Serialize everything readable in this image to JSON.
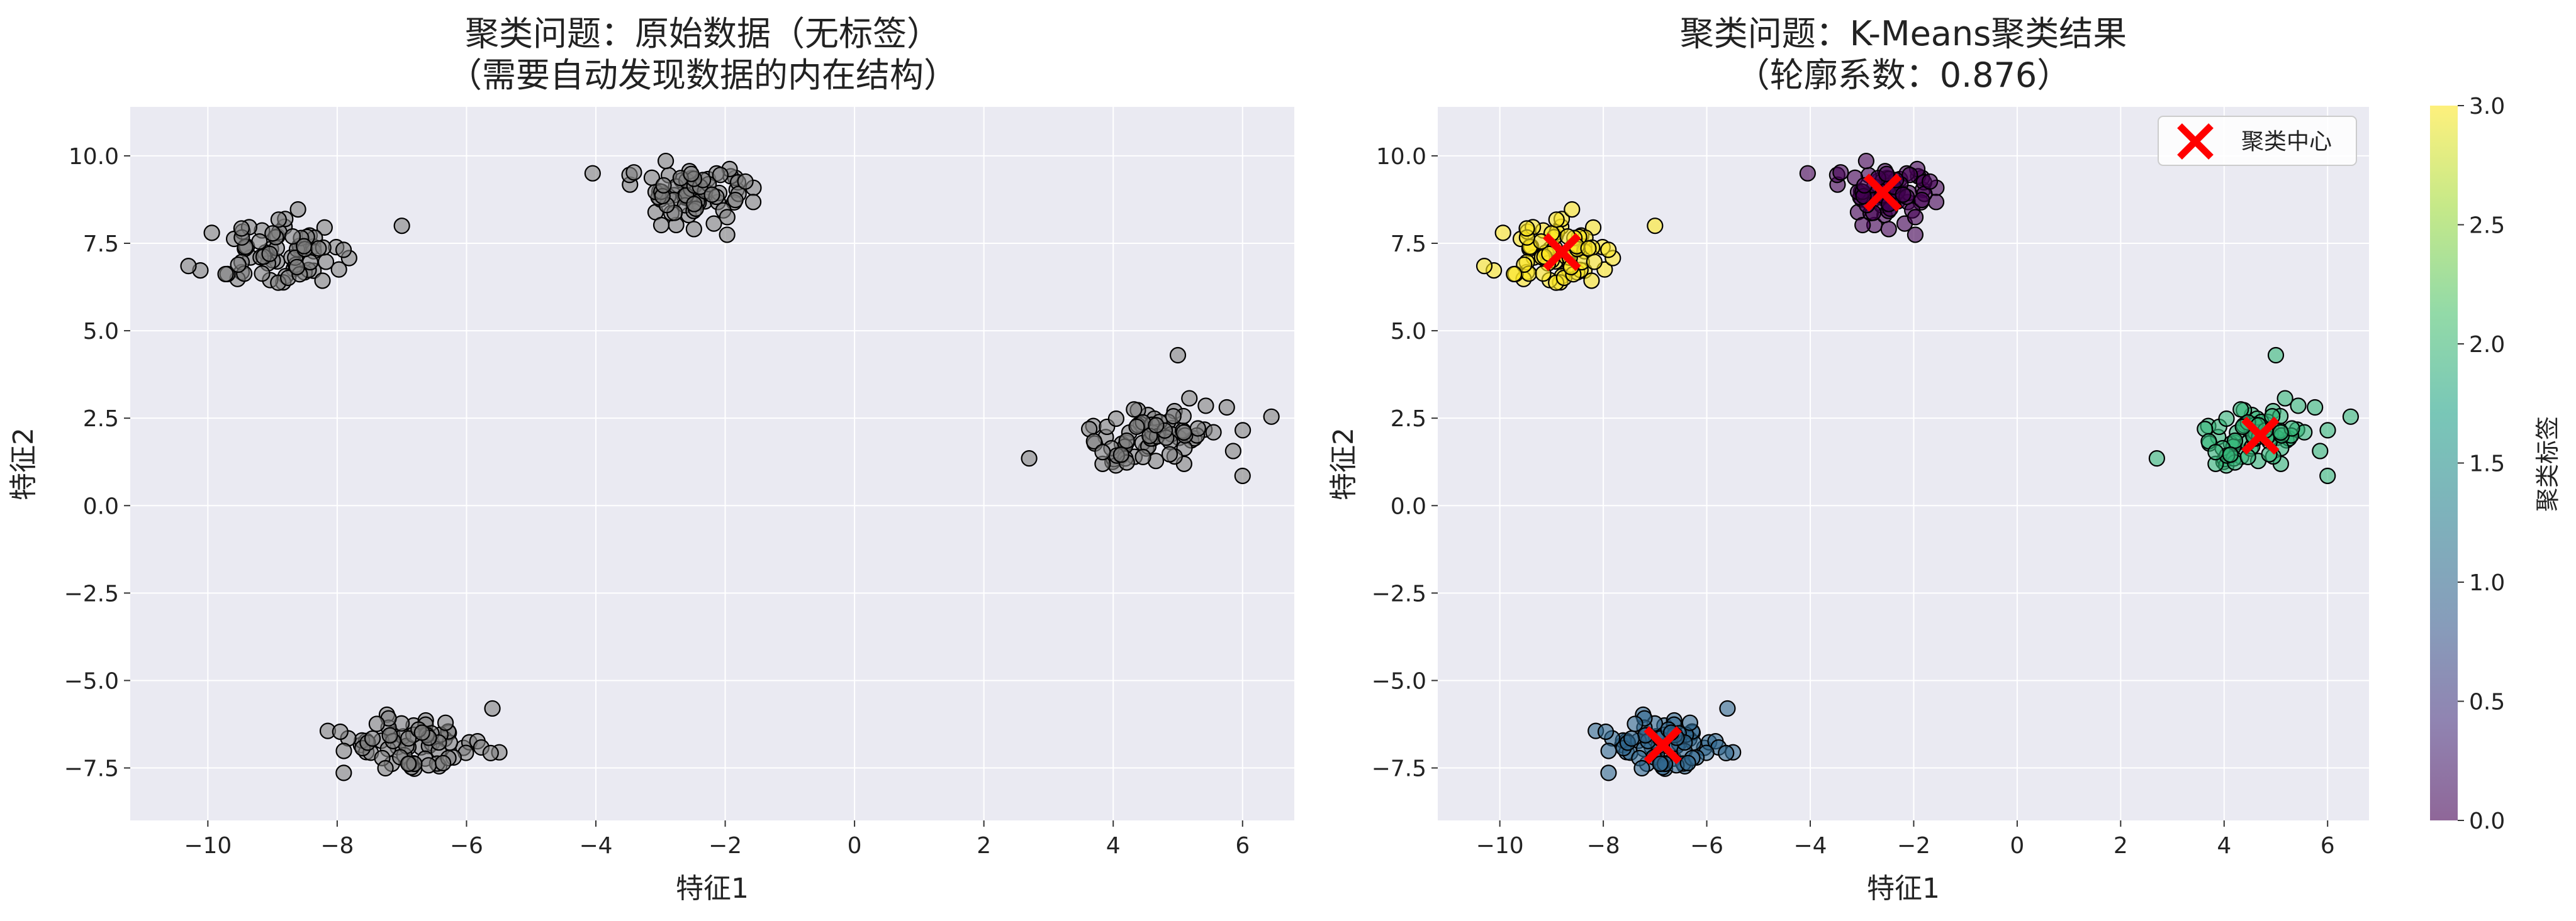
{
  "chart_data": [
    {
      "type": "scatter",
      "title_line1": "聚类问题：原始数据（无标签）",
      "title_line2": "（需要自动发现数据的内在结构）",
      "xlabel": "特征1",
      "ylabel": "特征2",
      "xlim": [
        -11.2,
        6.8
      ],
      "ylim": [
        -9.0,
        11.4
      ],
      "xticks": [
        -10,
        -8,
        -6,
        -4,
        -2,
        0,
        2,
        4,
        6
      ],
      "yticks": [
        -7.5,
        -5.0,
        -2.5,
        0.0,
        2.5,
        5.0,
        7.5,
        10.0
      ],
      "grid": true,
      "point_color": "#808080",
      "clusters": [
        {
          "cluster": 0,
          "center": [
            -2.6,
            8.95
          ],
          "spread": [
            0.55,
            0.45
          ],
          "count": 75
        },
        {
          "cluster": 1,
          "center": [
            -6.85,
            -6.85
          ],
          "spread": [
            0.55,
            0.45
          ],
          "count": 75
        },
        {
          "cluster": 2,
          "center": [
            4.7,
            2.0
          ],
          "spread": [
            0.5,
            0.5
          ],
          "count": 75
        },
        {
          "cluster": 3,
          "center": [
            -8.8,
            7.2
          ],
          "spread": [
            0.5,
            0.55
          ],
          "count": 75
        }
      ],
      "outliers": [
        {
          "cluster": 0,
          "x": -4.05,
          "y": 9.5
        },
        {
          "cluster": 3,
          "x": -7.0,
          "y": 8.0
        },
        {
          "cluster": 2,
          "x": 2.7,
          "y": 1.35
        },
        {
          "cluster": 2,
          "x": 5.0,
          "y": 4.3
        },
        {
          "cluster": 2,
          "x": 6.0,
          "y": 0.85
        },
        {
          "cluster": 3,
          "x": -10.3,
          "y": 6.85
        },
        {
          "cluster": 1,
          "x": -5.6,
          "y": -5.8
        }
      ]
    },
    {
      "type": "scatter",
      "title_line1": "聚类问题：K-Means聚类结果",
      "title_line2": "（轮廓系数：0.876）",
      "xlabel": "特征1",
      "ylabel": "特征2",
      "xlim": [
        -11.2,
        6.8
      ],
      "ylim": [
        -9.0,
        11.4
      ],
      "xticks": [
        -10,
        -8,
        -6,
        -4,
        -2,
        0,
        2,
        4,
        6
      ],
      "yticks": [
        -7.5,
        -5.0,
        -2.5,
        0.0,
        2.5,
        5.0,
        7.5,
        10.0
      ],
      "grid": true,
      "cluster_colors": [
        "#440154",
        "#31688e",
        "#35b779",
        "#fde725"
      ],
      "centers": [
        {
          "cluster": 0,
          "x": -2.6,
          "y": 8.95
        },
        {
          "cluster": 1,
          "x": -6.85,
          "y": -6.85
        },
        {
          "cluster": 2,
          "x": 4.7,
          "y": 2.0
        },
        {
          "cluster": 3,
          "x": -8.8,
          "y": 7.25
        }
      ],
      "center_color": "#ff0000",
      "legend": {
        "label": "聚类中心",
        "position": "upper-right"
      },
      "colorbar": {
        "label": "聚类标签",
        "range": [
          0.0,
          3.0
        ],
        "ticks": [
          "0.0",
          "0.5",
          "1.0",
          "1.5",
          "2.0",
          "2.5",
          "3.0"
        ],
        "colormap": "viridis"
      }
    }
  ]
}
